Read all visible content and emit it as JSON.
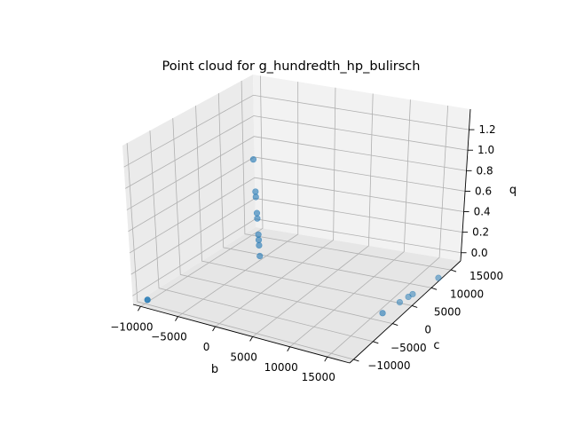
{
  "chart_data": {
    "type": "scatter3d",
    "title": "Point cloud for g_hundredth_hp_bulirsch",
    "xlabel": "b",
    "ylabel": "c",
    "zlabel": "q",
    "xlim": [
      -11000,
      18000
    ],
    "ylim": [
      -11000,
      17500
    ],
    "zlim": [
      -0.08,
      1.4
    ],
    "xticks": [
      -10000,
      -5000,
      0,
      5000,
      10000,
      15000
    ],
    "xtick_labels": [
      "−10000",
      "−5000",
      "0",
      "5000",
      "10000",
      "15000"
    ],
    "yticks": [
      -10000,
      -5000,
      0,
      5000,
      10000,
      15000
    ],
    "ytick_labels": [
      "−10000",
      "−5000",
      "0",
      "5000",
      "10000",
      "15000"
    ],
    "zticks": [
      0.0,
      0.2,
      0.4,
      0.6,
      0.8,
      1.0,
      1.2
    ],
    "ztick_labels": [
      "0.0",
      "0.2",
      "0.4",
      "0.6",
      "0.8",
      "1.0",
      "1.2"
    ],
    "grid": true,
    "marker_color": "#1f77b4",
    "points": [
      {
        "x": 0,
        "y": 0,
        "z": 1.2
      },
      {
        "x": 0,
        "y": 0,
        "z": 0.9
      },
      {
        "x": 0,
        "y": 0,
        "z": 0.85
      },
      {
        "x": 0,
        "y": 0,
        "z": 0.7
      },
      {
        "x": 0,
        "y": 0,
        "z": 0.65
      },
      {
        "x": 0,
        "y": 0,
        "z": 0.5
      },
      {
        "x": 0,
        "y": 0,
        "z": 0.45
      },
      {
        "x": 0,
        "y": 0,
        "z": 0.4
      },
      {
        "x": 0,
        "y": 0,
        "z": 0.3
      },
      {
        "x": -9000,
        "y": -11000,
        "z": 0.0
      },
      {
        "x": 15000,
        "y": 2000,
        "z": 0.0
      },
      {
        "x": 15000,
        "y": 6000,
        "z": 0.0
      },
      {
        "x": 15000,
        "y": 8000,
        "z": 0.0
      },
      {
        "x": 15000,
        "y": 9000,
        "z": 0.0
      },
      {
        "x": 15000,
        "y": 15000,
        "z": 0.0
      }
    ]
  }
}
